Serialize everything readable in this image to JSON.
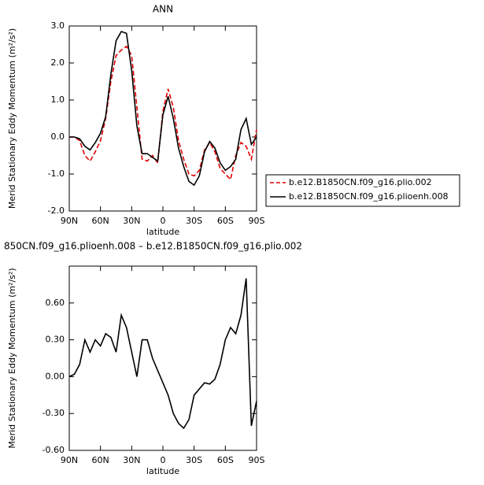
{
  "chart_data": [
    {
      "type": "line",
      "title": "ANN",
      "xlabel": "latitude",
      "ylabel": "Merid Stationary Eddy Momentum (m²/s²)",
      "x": [
        90,
        85,
        80,
        75,
        70,
        65,
        60,
        55,
        50,
        45,
        40,
        35,
        30,
        25,
        20,
        15,
        10,
        5,
        0,
        -5,
        -10,
        -15,
        -20,
        -25,
        -30,
        -35,
        -40,
        -45,
        -50,
        -55,
        -60,
        -65,
        -70,
        -75,
        -80,
        -85,
        -90
      ],
      "xlim": [
        90,
        -90
      ],
      "xticks": [
        {
          "value": 90,
          "label": "90N"
        },
        {
          "value": 60,
          "label": "60N"
        },
        {
          "value": 30,
          "label": "30N"
        },
        0,
        {
          "value": -30,
          "label": "30S"
        },
        {
          "value": -60,
          "label": "60S"
        },
        {
          "value": -90,
          "label": "90S"
        }
      ],
      "ylim": [
        -2,
        3
      ],
      "yticks": [
        {
          "value": -2,
          "label": "-2.0"
        },
        {
          "value": -1,
          "label": "-1.0"
        },
        {
          "value": 0,
          "label": "0.0"
        },
        {
          "value": 1,
          "label": "1.0"
        },
        {
          "value": 2,
          "label": "2.0"
        },
        {
          "value": 3,
          "label": "3.0"
        }
      ],
      "legend": "right",
      "series": [
        {
          "name": "b.e12.B1850CN.f09_g16.plio.002",
          "color": "#e00000",
          "linestyle": "dashed",
          "values": [
            0,
            0,
            -0.1,
            -0.5,
            -0.65,
            -0.4,
            -0.1,
            0.5,
            1.5,
            2.2,
            2.35,
            2.45,
            2.2,
            0.8,
            -0.6,
            -0.65,
            -0.5,
            -0.7,
            0.7,
            1.3,
            0.8,
            -0.1,
            -0.6,
            -1.0,
            -1.05,
            -0.9,
            -0.35,
            -0.15,
            -0.4,
            -0.85,
            -1.0,
            -1.15,
            -0.5,
            -0.15,
            -0.25,
            -0.6,
            0.2
          ]
        },
        {
          "name": "b.e12.B1850CN.f09_g16.plioenh.008",
          "color": "#000000",
          "linestyle": "solid",
          "values": [
            0,
            0,
            -0.05,
            -0.25,
            -0.35,
            -0.15,
            0.1,
            0.55,
            1.7,
            2.6,
            2.85,
            2.8,
            1.8,
            0.3,
            -0.45,
            -0.45,
            -0.55,
            -0.65,
            0.6,
            1.1,
            0.5,
            -0.3,
            -0.8,
            -1.2,
            -1.3,
            -1.05,
            -0.4,
            -0.12,
            -0.3,
            -0.7,
            -0.9,
            -0.8,
            -0.6,
            0.2,
            0.5,
            -0.2,
            0
          ]
        }
      ]
    },
    {
      "type": "line",
      "title": "850CN.f09_g16.plioenh.008 – b.e12.B1850CN.f09_g16.plio.002",
      "xlabel": "latitude",
      "ylabel": "Merid Stationary Eddy Momentum (m²/s²)",
      "x": [
        90,
        85,
        80,
        75,
        70,
        65,
        60,
        55,
        50,
        45,
        40,
        35,
        30,
        25,
        20,
        15,
        10,
        5,
        0,
        -5,
        -10,
        -15,
        -20,
        -25,
        -30,
        -35,
        -40,
        -45,
        -50,
        -55,
        -60,
        -65,
        -70,
        -75,
        -80,
        -85,
        -90
      ],
      "xlim": [
        90,
        -90
      ],
      "xticks": [
        {
          "value": 90,
          "label": "90N"
        },
        {
          "value": 60,
          "label": "60N"
        },
        {
          "value": 30,
          "label": "30N"
        },
        0,
        {
          "value": -30,
          "label": "30S"
        },
        {
          "value": -60,
          "label": "60S"
        },
        {
          "value": -90,
          "label": "90S"
        }
      ],
      "ylim": [
        -0.6,
        0.9
      ],
      "yticks": [
        {
          "value": -0.6,
          "label": "-0.60"
        },
        {
          "value": -0.3,
          "label": "-0.30"
        },
        {
          "value": 0,
          "label": "0.00"
        },
        {
          "value": 0.3,
          "label": "0.30"
        },
        {
          "value": 0.6,
          "label": "0.60"
        }
      ],
      "series": [
        {
          "color": "#000000",
          "linestyle": "solid",
          "values": [
            0,
            0.02,
            0.1,
            0.3,
            0.2,
            0.3,
            0.25,
            0.35,
            0.32,
            0.2,
            0.5,
            0.4,
            0.2,
            0,
            0.3,
            0.3,
            0.15,
            0.05,
            -0.05,
            -0.15,
            -0.3,
            -0.38,
            -0.42,
            -0.35,
            -0.15,
            -0.1,
            -0.05,
            -0.06,
            -0.02,
            0.1,
            0.3,
            0.4,
            0.35,
            0.5,
            0.8,
            -0.4,
            -0.2
          ]
        }
      ]
    }
  ]
}
